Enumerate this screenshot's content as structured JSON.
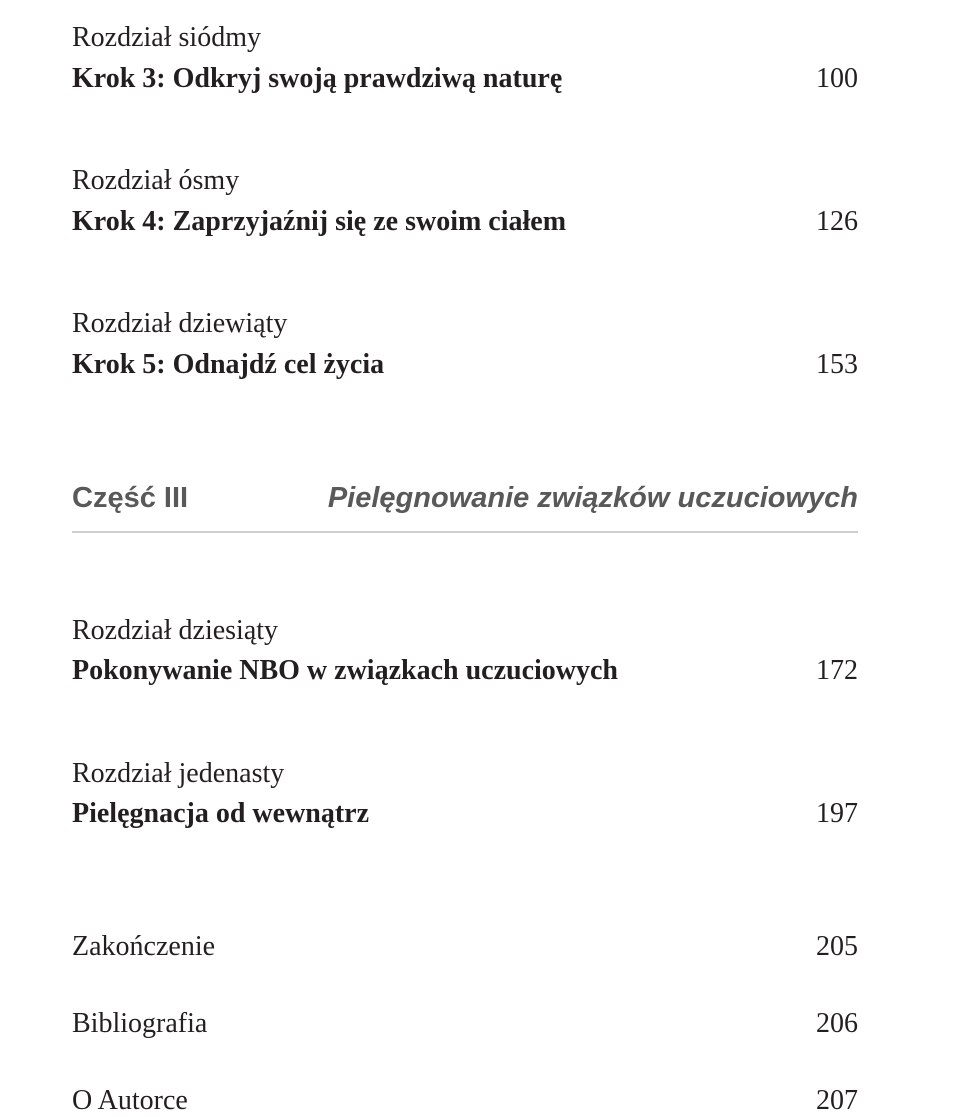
{
  "chapters": [
    {
      "label": "Rozdział siódmy",
      "title": "Krok 3: Odkryj swoją prawdziwą naturę",
      "page": "100"
    },
    {
      "label": "Rozdział ósmy",
      "title": "Krok 4: Zaprzyjaźnij się ze swoim ciałem",
      "page": "126"
    },
    {
      "label": "Rozdział dziewiąty",
      "title": "Krok 5: Odnajdź cel życia",
      "page": "153"
    }
  ],
  "part": {
    "label": "Część III",
    "title": "Pielęgnowanie związków uczuciowych"
  },
  "chapters_after": [
    {
      "label": "Rozdział dziesiąty",
      "title": "Pokonywanie NBO w związkach uczuciowych",
      "page": "172"
    },
    {
      "label": "Rozdział jedenasty",
      "title": "Pielęgnacja od wewnątrz",
      "page": "197"
    }
  ],
  "backmatter": [
    {
      "label": "Zakończenie",
      "page": "205"
    },
    {
      "label": "Bibliografia",
      "page": "206"
    },
    {
      "label": "O Autorce",
      "page": "207"
    }
  ],
  "colors": {
    "text": "#231f20",
    "part_text": "#595959",
    "divider": "#d0d0d0",
    "background": "#ffffff"
  },
  "typography": {
    "body_fontsize_pt": 21,
    "part_fontsize_pt": 22,
    "body_family": "serif",
    "part_family": "sans-serif"
  }
}
